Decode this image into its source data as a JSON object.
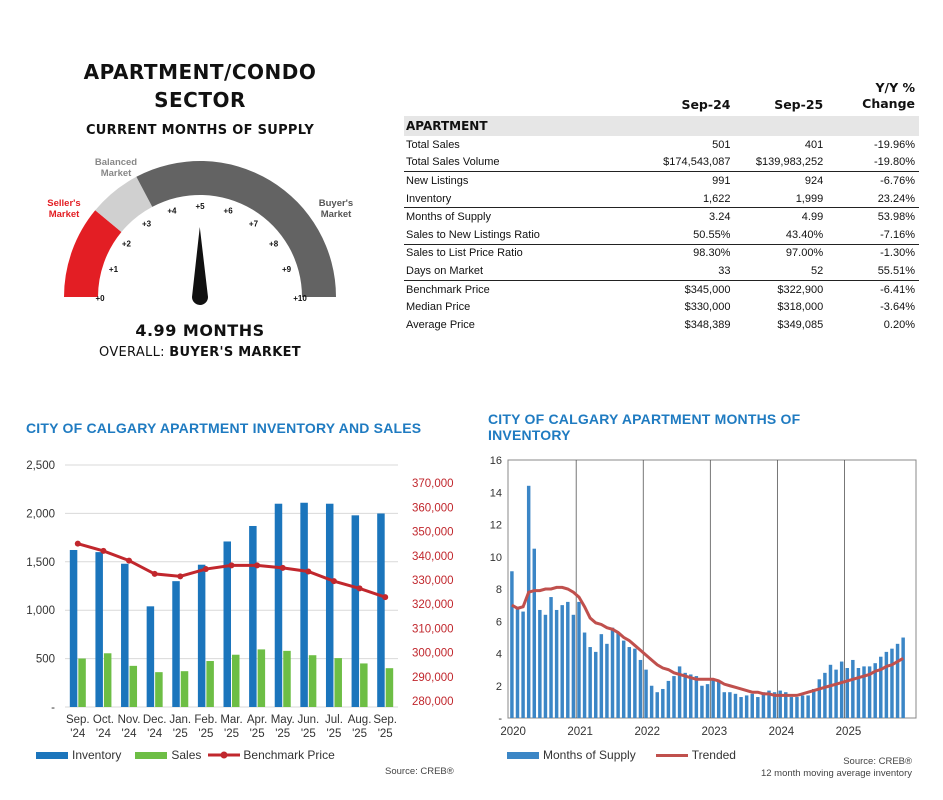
{
  "sector": {
    "title_line1": "APARTMENT/CONDO",
    "title_line2": "SECTOR",
    "subtitle": "CURRENT MONTHS OF SUPPLY",
    "gauge_value": 4.99,
    "gauge_max": 10,
    "gauge_ticks": [
      "+0",
      "+1",
      "+2",
      "+3",
      "+4",
      "+5",
      "+6",
      "+7",
      "+8",
      "+9",
      "+10"
    ],
    "balanced_label_1": "Balanced",
    "balanced_label_2": "Market",
    "seller_label_1": "Seller's",
    "seller_label_2": "Market",
    "buyer_label_1": "Buyer's",
    "buyer_label_2": "Market",
    "months_text": "4.99 MONTHS",
    "overall_prefix": "OVERALL: ",
    "overall_value": "BUYER'S MARKET",
    "colors": {
      "seller": "#e31e24",
      "balanced": "#d0d0d0",
      "buyer": "#636363",
      "needle": "#111111"
    }
  },
  "table": {
    "headers": [
      "",
      "Sep-24",
      "Sep-25",
      "Y/Y %",
      "Change"
    ],
    "section": "APARTMENT",
    "rows": [
      [
        "Total Sales",
        "501",
        "401",
        "-19.96%"
      ],
      [
        "Total Sales Volume",
        "$174,543,087",
        "$139,983,252",
        "-19.80%"
      ],
      [
        "New Listings",
        "991",
        "924",
        "-6.76%"
      ],
      [
        "Inventory",
        "1,622",
        "1,999",
        "23.24%"
      ],
      [
        "Months of Supply",
        "3.24",
        "4.99",
        "53.98%"
      ],
      [
        "Sales to New Listings Ratio",
        "50.55%",
        "43.40%",
        "-7.16%"
      ],
      [
        "Sales to List Price Ratio",
        "98.30%",
        "97.00%",
        "-1.30%"
      ],
      [
        "Days on Market",
        "33",
        "52",
        "55.51%"
      ],
      [
        "Benchmark Price",
        "$345,000",
        "$322,900",
        "-6.41%"
      ],
      [
        "Median Price",
        "$330,000",
        "$318,000",
        "-3.64%"
      ],
      [
        "Average Price",
        "$348,389",
        "$349,085",
        "0.20%"
      ]
    ]
  },
  "chart1_title": "CITY OF CALGARY APARTMENT INVENTORY AND SALES",
  "chart1_legend": [
    "Inventory",
    "Sales",
    "Benchmark Price"
  ],
  "chart1_source": "Source: CREB®",
  "chart2_title_line1": "CITY OF CALGARY APARTMENT MONTHS OF",
  "chart2_title_line2": "INVENTORY",
  "chart2_legend": [
    "Months of Supply",
    "Trended"
  ],
  "chart2_source_1": "Source: CREB®",
  "chart2_source_2": "12 month moving average inventory",
  "chart_data": [
    {
      "type": "bar",
      "categories_top": [
        "Sep.",
        "Oct.",
        "Nov.",
        "Dec.",
        "Jan.",
        "Feb.",
        "Mar.",
        "Apr.",
        "May.",
        "Jun.",
        "Jul.",
        "Aug.",
        "Sep."
      ],
      "categories_bottom": [
        "'24",
        "'24",
        "'24",
        "'24",
        "'25",
        "'25",
        "'25",
        "'25",
        "'25",
        "'25",
        "'25",
        "'25",
        "'25"
      ],
      "series": [
        {
          "name": "Inventory",
          "color": "#1b75bc",
          "axis": "left",
          "values": [
            1622,
            1600,
            1480,
            1040,
            1300,
            1470,
            1710,
            1870,
            2100,
            2110,
            2100,
            1980,
            1999
          ]
        },
        {
          "name": "Sales",
          "color": "#6dbe45",
          "axis": "left",
          "values": [
            501,
            555,
            425,
            360,
            370,
            475,
            540,
            595,
            580,
            535,
            505,
            450,
            401
          ]
        },
        {
          "name": "Benchmark Price",
          "type": "line",
          "color": "#c1272d",
          "axis": "right",
          "values": [
            345000,
            342000,
            338000,
            332500,
            331500,
            334500,
            336000,
            336000,
            335000,
            333500,
            329500,
            326500,
            322900
          ]
        }
      ],
      "left_ticks": [
        "-",
        "500",
        "1,000",
        "1,500",
        "2,000",
        "2,500"
      ],
      "left_ylim": [
        0,
        2500
      ],
      "right_ticks": [
        "280,000",
        "290,000",
        "300,000",
        "310,000",
        "320,000",
        "330,000",
        "340,000",
        "350,000",
        "360,000",
        "370,000"
      ],
      "right_ylim": [
        277500,
        377500
      ],
      "grid": true,
      "legend_position": "bottom"
    },
    {
      "type": "bar",
      "x_labels": [
        "2020",
        "2021",
        "2022",
        "2023",
        "2024",
        "2025"
      ],
      "y_ticks": [
        "-",
        "2",
        "4",
        "6",
        "8",
        "10",
        "12",
        "14",
        "16"
      ],
      "ylim": [
        0,
        16
      ],
      "series": [
        {
          "name": "Months of Supply",
          "color": "#3b86c6",
          "values": [
            9.1,
            6.9,
            6.6,
            14.4,
            10.5,
            6.7,
            6.4,
            7.5,
            6.7,
            7.0,
            7.2,
            6.4,
            7.2,
            5.3,
            4.4,
            4.1,
            5.2,
            4.6,
            5.6,
            5.3,
            4.8,
            4.4,
            4.3,
            3.6,
            3.0,
            2.0,
            1.6,
            1.8,
            2.3,
            2.6,
            3.2,
            2.8,
            2.7,
            2.6,
            2.0,
            2.1,
            2.4,
            2.3,
            1.6,
            1.6,
            1.5,
            1.3,
            1.4,
            1.5,
            1.3,
            1.6,
            1.7,
            1.6,
            1.7,
            1.6,
            1.3,
            1.3,
            1.4,
            1.4,
            1.8,
            2.4,
            2.8,
            3.3,
            3.0,
            3.5,
            3.1,
            3.6,
            3.1,
            3.2,
            3.2,
            3.4,
            3.8,
            4.1,
            4.3,
            4.6,
            4.99
          ]
        },
        {
          "name": "Trended",
          "type": "line",
          "color": "#c0504d",
          "values": [
            7.0,
            6.8,
            6.9,
            7.8,
            7.9,
            7.9,
            8.0,
            8.0,
            8.1,
            8.1,
            8.0,
            7.8,
            7.5,
            6.9,
            6.2,
            5.9,
            5.8,
            5.6,
            5.5,
            5.3,
            5.0,
            4.8,
            4.5,
            4.2,
            3.9,
            3.6,
            3.3,
            3.1,
            3.0,
            2.8,
            2.7,
            2.6,
            2.5,
            2.4,
            2.4,
            2.4,
            2.4,
            2.3,
            2.1,
            2.0,
            1.9,
            1.8,
            1.7,
            1.6,
            1.6,
            1.5,
            1.5,
            1.4,
            1.4,
            1.4,
            1.4,
            1.4,
            1.5,
            1.6,
            1.7,
            1.8,
            1.9,
            2.0,
            2.1,
            2.2,
            2.3,
            2.4,
            2.5,
            2.6,
            2.7,
            2.9,
            3.0,
            3.2,
            3.3,
            3.5,
            3.7
          ]
        }
      ],
      "grid": true,
      "legend_position": "bottom"
    }
  ]
}
